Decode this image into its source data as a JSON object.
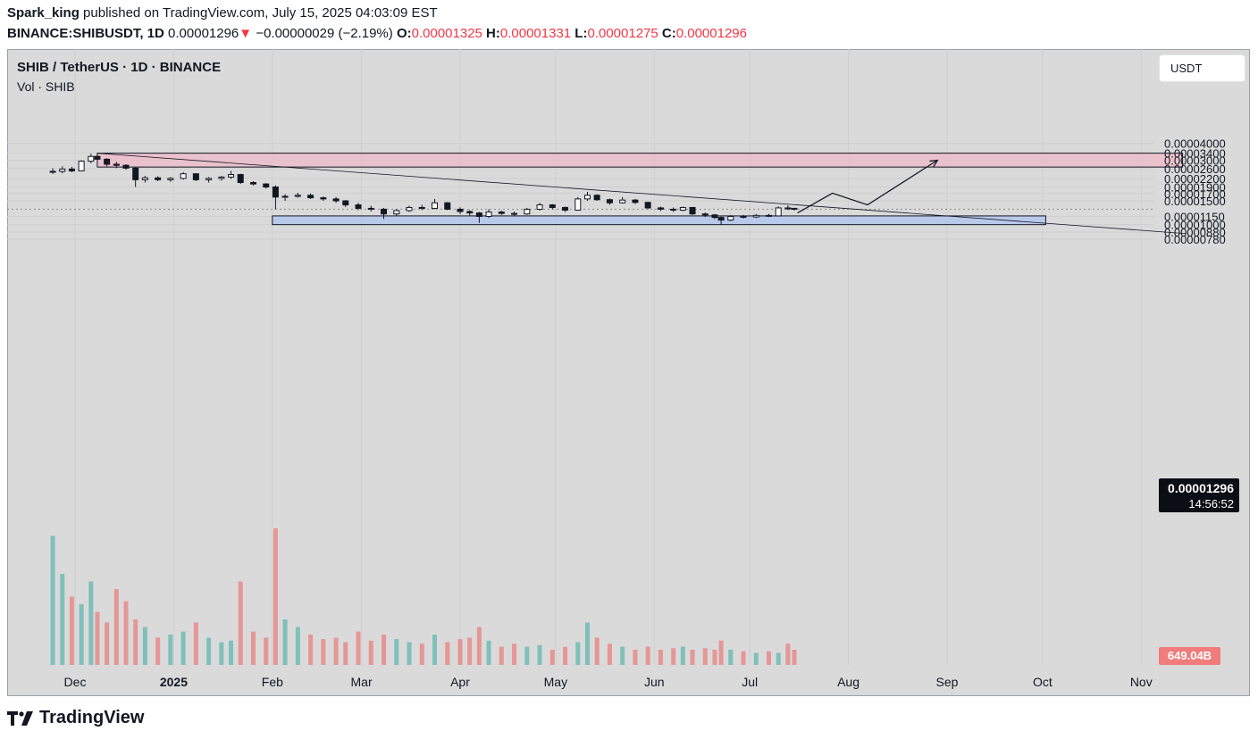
{
  "header": {
    "author": "Spark_king",
    "published": " published on TradingView.com, July 15, 2025 04:03:09 EST",
    "symbol": "BINANCE:SHIBUSDT, 1D",
    "last": "0.00001296",
    "change_arrow": "▼",
    "change": "−0.00000029 (−2.19%)",
    "o_label": "O:",
    "o_value": "0.00001325",
    "h_label": "H:",
    "h_value": "0.00001331",
    "l_label": "L:",
    "l_value": "0.00001275",
    "c_label": "C:",
    "c_value": "0.00001296"
  },
  "legend": {
    "symbol": "SHIB / TetherUS · 1D · BINANCE",
    "volume": "Vol · SHIB"
  },
  "currency_button": "USDT",
  "price_tag": {
    "price": "0.00001296",
    "countdown": "14:56:52"
  },
  "volume_tag": "649.04B",
  "footer": {
    "brand": "TradingView"
  },
  "colors": {
    "up": "#26a69a",
    "down": "#ef5350",
    "background": "#dadada",
    "supply_zone": "#f0b8c8",
    "demand_zone": "#b3c6ec"
  },
  "chart_data": {
    "type": "candlestick",
    "y_scale": "log",
    "y_ticks": [
      "0.00004000",
      "0.00003400",
      "0.00003000",
      "0.00002600",
      "0.00002200",
      "0.00001900",
      "0.00001700",
      "0.00001500",
      "0.00001150",
      "0.00001000",
      "0.00000880",
      "0.00000780"
    ],
    "x_ticks": [
      "Dec",
      "2025",
      "Feb",
      "Mar",
      "Apr",
      "May",
      "Jun",
      "Jul",
      "Aug",
      "Sep",
      "Oct",
      "Nov"
    ],
    "ohlc": [
      {
        "date": "2024-11-24",
        "open": 2.45e-05,
        "high": 2.62e-05,
        "low": 2.38e-05,
        "close": 2.48e-05
      },
      {
        "date": "2024-11-27",
        "open": 2.48e-05,
        "high": 2.7e-05,
        "low": 2.4e-05,
        "close": 2.58e-05
      },
      {
        "date": "2024-11-30",
        "open": 2.58e-05,
        "high": 2.68e-05,
        "low": 2.44e-05,
        "close": 2.5e-05
      },
      {
        "date": "2024-12-03",
        "open": 2.5e-05,
        "high": 3e-05,
        "low": 2.48e-05,
        "close": 2.95e-05
      },
      {
        "date": "2024-12-06",
        "open": 2.95e-05,
        "high": 3.35e-05,
        "low": 2.85e-05,
        "close": 3.2e-05
      },
      {
        "date": "2024-12-08",
        "open": 3.2e-05,
        "high": 3.38e-05,
        "low": 3e-05,
        "close": 3.05e-05
      },
      {
        "date": "2024-12-11",
        "open": 3.05e-05,
        "high": 3.1e-05,
        "low": 2.7e-05,
        "close": 2.8e-05
      },
      {
        "date": "2024-12-14",
        "open": 2.8e-05,
        "high": 2.92e-05,
        "low": 2.62e-05,
        "close": 2.75e-05
      },
      {
        "date": "2024-12-17",
        "open": 2.75e-05,
        "high": 2.8e-05,
        "low": 2.55e-05,
        "close": 2.62e-05
      },
      {
        "date": "2024-12-20",
        "open": 2.62e-05,
        "high": 2.65e-05,
        "low": 1.9e-05,
        "close": 2.15e-05
      },
      {
        "date": "2024-12-23",
        "open": 2.15e-05,
        "high": 2.3e-05,
        "low": 2.05e-05,
        "close": 2.22e-05
      },
      {
        "date": "2024-12-27",
        "open": 2.22e-05,
        "high": 2.28e-05,
        "low": 2.1e-05,
        "close": 2.15e-05
      },
      {
        "date": "2024-12-31",
        "open": 2.15e-05,
        "high": 2.25e-05,
        "low": 2.08e-05,
        "close": 2.2e-05
      },
      {
        "date": "2025-01-04",
        "open": 2.2e-05,
        "high": 2.45e-05,
        "low": 2.15e-05,
        "close": 2.38e-05
      },
      {
        "date": "2025-01-08",
        "open": 2.38e-05,
        "high": 2.4e-05,
        "low": 2.1e-05,
        "close": 2.15e-05
      },
      {
        "date": "2025-01-12",
        "open": 2.15e-05,
        "high": 2.25e-05,
        "low": 2.05e-05,
        "close": 2.2e-05
      },
      {
        "date": "2025-01-16",
        "open": 2.2e-05,
        "high": 2.3e-05,
        "low": 2.12e-05,
        "close": 2.25e-05
      },
      {
        "date": "2025-01-19",
        "open": 2.25e-05,
        "high": 2.5e-05,
        "low": 2.18e-05,
        "close": 2.35e-05
      },
      {
        "date": "2025-01-22",
        "open": 2.35e-05,
        "high": 2.38e-05,
        "low": 2e-05,
        "close": 2.05e-05
      },
      {
        "date": "2025-01-26",
        "open": 2.05e-05,
        "high": 2.1e-05,
        "low": 1.95e-05,
        "close": 2e-05
      },
      {
        "date": "2025-01-30",
        "open": 2e-05,
        "high": 2.03e-05,
        "low": 1.85e-05,
        "close": 1.9e-05
      },
      {
        "date": "2025-02-02",
        "open": 1.9e-05,
        "high": 1.95e-05,
        "low": 1.3e-05,
        "close": 1.6e-05
      },
      {
        "date": "2025-02-05",
        "open": 1.6e-05,
        "high": 1.68e-05,
        "low": 1.5e-05,
        "close": 1.62e-05
      },
      {
        "date": "2025-02-09",
        "open": 1.62e-05,
        "high": 1.72e-05,
        "low": 1.58e-05,
        "close": 1.65e-05
      },
      {
        "date": "2025-02-13",
        "open": 1.65e-05,
        "high": 1.7e-05,
        "low": 1.55e-05,
        "close": 1.58e-05
      },
      {
        "date": "2025-02-17",
        "open": 1.58e-05,
        "high": 1.62e-05,
        "low": 1.5e-05,
        "close": 1.55e-05
      },
      {
        "date": "2025-02-21",
        "open": 1.55e-05,
        "high": 1.6e-05,
        "low": 1.45e-05,
        "close": 1.5e-05
      },
      {
        "date": "2025-02-24",
        "open": 1.5e-05,
        "high": 1.52e-05,
        "low": 1.35e-05,
        "close": 1.4e-05
      },
      {
        "date": "2025-02-28",
        "open": 1.4e-05,
        "high": 1.45e-05,
        "low": 1.28e-05,
        "close": 1.32e-05
      },
      {
        "date": "2025-03-04",
        "open": 1.32e-05,
        "high": 1.38e-05,
        "low": 1.25e-05,
        "close": 1.3e-05
      },
      {
        "date": "2025-03-08",
        "open": 1.3e-05,
        "high": 1.33e-05,
        "low": 1.1e-05,
        "close": 1.2e-05
      },
      {
        "date": "2025-03-12",
        "open": 1.2e-05,
        "high": 1.3e-05,
        "low": 1.16e-05,
        "close": 1.27e-05
      },
      {
        "date": "2025-03-16",
        "open": 1.27e-05,
        "high": 1.38e-05,
        "low": 1.24e-05,
        "close": 1.34e-05
      },
      {
        "date": "2025-03-20",
        "open": 1.34e-05,
        "high": 1.4e-05,
        "low": 1.28e-05,
        "close": 1.32e-05
      },
      {
        "date": "2025-03-24",
        "open": 1.32e-05,
        "high": 1.55e-05,
        "low": 1.3e-05,
        "close": 1.45e-05
      },
      {
        "date": "2025-03-28",
        "open": 1.45e-05,
        "high": 1.47e-05,
        "low": 1.28e-05,
        "close": 1.3e-05
      },
      {
        "date": "2025-04-01",
        "open": 1.3e-05,
        "high": 1.34e-05,
        "low": 1.2e-05,
        "close": 1.25e-05
      },
      {
        "date": "2025-04-04",
        "open": 1.25e-05,
        "high": 1.28e-05,
        "low": 1.17e-05,
        "close": 1.22e-05
      },
      {
        "date": "2025-04-07",
        "open": 1.22e-05,
        "high": 1.24e-05,
        "low": 1.03e-05,
        "close": 1.15e-05
      },
      {
        "date": "2025-04-10",
        "open": 1.15e-05,
        "high": 1.3e-05,
        "low": 1.12e-05,
        "close": 1.24e-05
      },
      {
        "date": "2025-04-14",
        "open": 1.24e-05,
        "high": 1.27e-05,
        "low": 1.18e-05,
        "close": 1.21e-05
      },
      {
        "date": "2025-04-18",
        "open": 1.21e-05,
        "high": 1.25e-05,
        "low": 1.15e-05,
        "close": 1.2e-05
      },
      {
        "date": "2025-04-22",
        "open": 1.2e-05,
        "high": 1.33e-05,
        "low": 1.18e-05,
        "close": 1.3e-05
      },
      {
        "date": "2025-04-26",
        "open": 1.3e-05,
        "high": 1.45e-05,
        "low": 1.27e-05,
        "close": 1.4e-05
      },
      {
        "date": "2025-04-30",
        "open": 1.4e-05,
        "high": 1.42e-05,
        "low": 1.3e-05,
        "close": 1.34e-05
      },
      {
        "date": "2025-05-04",
        "open": 1.34e-05,
        "high": 1.36e-05,
        "low": 1.24e-05,
        "close": 1.28e-05
      },
      {
        "date": "2025-05-08",
        "open": 1.28e-05,
        "high": 1.6e-05,
        "low": 1.27e-05,
        "close": 1.55e-05
      },
      {
        "date": "2025-05-11",
        "open": 1.55e-05,
        "high": 1.75e-05,
        "low": 1.5e-05,
        "close": 1.65e-05
      },
      {
        "date": "2025-05-14",
        "open": 1.65e-05,
        "high": 1.68e-05,
        "low": 1.5e-05,
        "close": 1.53e-05
      },
      {
        "date": "2025-05-18",
        "open": 1.53e-05,
        "high": 1.56e-05,
        "low": 1.4e-05,
        "close": 1.45e-05
      },
      {
        "date": "2025-05-22",
        "open": 1.45e-05,
        "high": 1.6e-05,
        "low": 1.43e-05,
        "close": 1.52e-05
      },
      {
        "date": "2025-05-26",
        "open": 1.52e-05,
        "high": 1.55e-05,
        "low": 1.42e-05,
        "close": 1.46e-05
      },
      {
        "date": "2025-05-30",
        "open": 1.46e-05,
        "high": 1.48e-05,
        "low": 1.3e-05,
        "close": 1.33e-05
      },
      {
        "date": "2025-06-03",
        "open": 1.33e-05,
        "high": 1.36e-05,
        "low": 1.26e-05,
        "close": 1.3e-05
      },
      {
        "date": "2025-06-07",
        "open": 1.3e-05,
        "high": 1.34e-05,
        "low": 1.24e-05,
        "close": 1.28e-05
      },
      {
        "date": "2025-06-10",
        "open": 1.28e-05,
        "high": 1.36e-05,
        "low": 1.26e-05,
        "close": 1.34e-05
      },
      {
        "date": "2025-06-13",
        "open": 1.34e-05,
        "high": 1.35e-05,
        "low": 1.18e-05,
        "close": 1.2e-05
      },
      {
        "date": "2025-06-17",
        "open": 1.2e-05,
        "high": 1.23e-05,
        "low": 1.14e-05,
        "close": 1.18e-05
      },
      {
        "date": "2025-06-20",
        "open": 1.18e-05,
        "high": 1.2e-05,
        "low": 1.1e-05,
        "close": 1.13e-05
      },
      {
        "date": "2025-06-22",
        "open": 1.13e-05,
        "high": 1.15e-05,
        "low": 1e-05,
        "close": 1.08e-05
      },
      {
        "date": "2025-06-25",
        "open": 1.08e-05,
        "high": 1.18e-05,
        "low": 1.06e-05,
        "close": 1.15e-05
      },
      {
        "date": "2025-06-29",
        "open": 1.15e-05,
        "high": 1.18e-05,
        "low": 1.11e-05,
        "close": 1.14e-05
      },
      {
        "date": "2025-07-03",
        "open": 1.14e-05,
        "high": 1.2e-05,
        "low": 1.12e-05,
        "close": 1.17e-05
      },
      {
        "date": "2025-07-07",
        "open": 1.17e-05,
        "high": 1.2e-05,
        "low": 1.14e-05,
        "close": 1.16e-05
      },
      {
        "date": "2025-07-10",
        "open": 1.16e-05,
        "high": 1.36e-05,
        "low": 1.15e-05,
        "close": 1.33e-05
      },
      {
        "date": "2025-07-13",
        "open": 1.33e-05,
        "high": 1.39e-05,
        "low": 1.28e-05,
        "close": 1.32e-05
      },
      {
        "date": "2025-07-15",
        "open": 1.32e-05,
        "high": 1.33e-05,
        "low": 1.27e-05,
        "close": 1.3e-05
      }
    ],
    "volume_relative": [
      0.85,
      0.6,
      0.45,
      0.4,
      0.55,
      0.35,
      0.28,
      0.5,
      0.42,
      0.3,
      0.25,
      0.18,
      0.2,
      0.22,
      0.28,
      0.18,
      0.15,
      0.16,
      0.55,
      0.22,
      0.18,
      0.9,
      0.3,
      0.25,
      0.2,
      0.17,
      0.18,
      0.15,
      0.22,
      0.16,
      0.2,
      0.17,
      0.15,
      0.14,
      0.2,
      0.15,
      0.17,
      0.18,
      0.25,
      0.16,
      0.12,
      0.14,
      0.12,
      0.13,
      0.1,
      0.12,
      0.15,
      0.28,
      0.18,
      0.14,
      0.12,
      0.1,
      0.12,
      0.1,
      0.11,
      0.12,
      0.1,
      0.11,
      0.1,
      0.16,
      0.1,
      0.09,
      0.08,
      0.09,
      0.08,
      0.14,
      0.1
    ],
    "annotations": {
      "supply_zone": {
        "top": 3.38e-05,
        "bottom": 2.67e-05,
        "from": "2024-12-08",
        "to": "2025-11-14"
      },
      "demand_zone": {
        "top": 1.16e-05,
        "bottom": 1e-05,
        "from": "2025-02-01",
        "to": "2025-10-02"
      },
      "trendline": {
        "from": {
          "date": "2024-12-08",
          "price": 3.38e-05
        },
        "to": {
          "date": "2025-11-15",
          "price": 8.58e-06
        }
      },
      "projection_path": [
        {
          "date": "2025-07-16",
          "price": 1.22e-05
        },
        {
          "date": "2025-07-27",
          "price": 1.71e-05
        },
        {
          "date": "2025-08-07",
          "price": 1.4e-05
        },
        {
          "date": "2025-08-29",
          "price": 3e-05
        }
      ]
    }
  }
}
